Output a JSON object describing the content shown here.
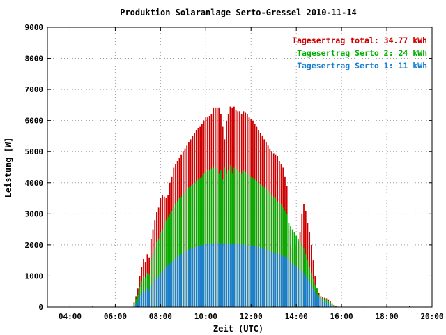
{
  "chart_data": {
    "type": "bar",
    "title": "Produktion Solaranlage Serto-Gressel 2010-11-14",
    "xlabel": "Zeit (UTC)",
    "ylabel": "Leistung [W]",
    "xlim": [
      "03:00",
      "20:00"
    ],
    "ylim": [
      0,
      9000
    ],
    "grid": true,
    "legend_position": "top-right",
    "x_ticks": [
      "04:00",
      "06:00",
      "08:00",
      "10:00",
      "12:00",
      "14:00",
      "16:00",
      "18:00",
      "20:00"
    ],
    "y_ticks": [
      "0",
      "1000",
      "2000",
      "3000",
      "4000",
      "5000",
      "6000",
      "7000",
      "8000",
      "9000"
    ],
    "legend": [
      {
        "label": "Tagesertrag total: 34.77 kWh",
        "color": "#cc0000"
      },
      {
        "label": "Tagesertrag Serto 2: 24 kWh",
        "color": "#00b000"
      },
      {
        "label": "Tagesertrag Serto 1: 11 kWh",
        "color": "#1a7fd4"
      }
    ],
    "x": [
      "06:50",
      "06:55",
      "07:00",
      "07:05",
      "07:10",
      "07:15",
      "07:20",
      "07:25",
      "07:30",
      "07:35",
      "07:40",
      "07:45",
      "07:50",
      "07:55",
      "08:00",
      "08:05",
      "08:10",
      "08:15",
      "08:20",
      "08:25",
      "08:30",
      "08:35",
      "08:40",
      "08:45",
      "08:50",
      "08:55",
      "09:00",
      "09:05",
      "09:10",
      "09:15",
      "09:20",
      "09:25",
      "09:30",
      "09:35",
      "09:40",
      "09:45",
      "09:50",
      "09:55",
      "10:00",
      "10:05",
      "10:10",
      "10:15",
      "10:20",
      "10:25",
      "10:30",
      "10:35",
      "10:40",
      "10:45",
      "10:50",
      "10:55",
      "11:00",
      "11:05",
      "11:10",
      "11:15",
      "11:20",
      "11:25",
      "11:30",
      "11:35",
      "11:40",
      "11:45",
      "11:50",
      "11:55",
      "12:00",
      "12:05",
      "12:10",
      "12:15",
      "12:20",
      "12:25",
      "12:30",
      "12:35",
      "12:40",
      "12:45",
      "12:50",
      "12:55",
      "13:00",
      "13:05",
      "13:10",
      "13:15",
      "13:20",
      "13:25",
      "13:30",
      "13:35",
      "13:40",
      "13:45",
      "13:50",
      "13:55",
      "14:00",
      "14:05",
      "14:10",
      "14:15",
      "14:20",
      "14:25",
      "14:30",
      "14:35",
      "14:40",
      "14:45",
      "14:50",
      "14:55",
      "15:00",
      "15:05",
      "15:10",
      "15:15",
      "15:20",
      "15:25",
      "15:30",
      "15:35",
      "15:40",
      "15:45"
    ],
    "series": [
      {
        "name": "Tagesertrag Serto 1: 11 kWh",
        "color": "#1a7fd4",
        "values": [
          50,
          100,
          200,
          350,
          450,
          550,
          500,
          600,
          550,
          700,
          800,
          900,
          950,
          1000,
          1100,
          1150,
          1200,
          1300,
          1350,
          1400,
          1450,
          1500,
          1550,
          1600,
          1650,
          1700,
          1750,
          1780,
          1800,
          1850,
          1880,
          1900,
          1920,
          1950,
          1960,
          1980,
          2000,
          2000,
          2020,
          2030,
          2040,
          2050,
          2050,
          2060,
          2060,
          2060,
          2050,
          2040,
          2050,
          2050,
          2050,
          2040,
          2040,
          2030,
          2030,
          2020,
          2020,
          2010,
          2000,
          2000,
          1990,
          1980,
          1970,
          1960,
          1950,
          1940,
          1920,
          1900,
          1890,
          1870,
          1850,
          1820,
          1800,
          1780,
          1760,
          1740,
          1720,
          1700,
          1680,
          1650,
          1620,
          1600,
          1500,
          1450,
          1400,
          1350,
          1300,
          1250,
          1200,
          1150,
          1100,
          1000,
          900,
          800,
          700,
          600,
          500,
          400,
          300,
          250,
          200,
          200,
          150,
          100,
          80,
          50,
          30,
          10
        ]
      },
      {
        "name": "Tagesertrag Serto 2: 24 kWh",
        "color": "#00b000",
        "values": [
          100,
          250,
          400,
          650,
          850,
          1000,
          950,
          1100,
          1050,
          1500,
          1700,
          1900,
          2100,
          2200,
          2400,
          2500,
          2700,
          2800,
          2900,
          3000,
          3100,
          3200,
          3300,
          3400,
          3500,
          3550,
          3650,
          3700,
          3800,
          3850,
          3900,
          3950,
          4000,
          4050,
          4100,
          4150,
          4200,
          4300,
          4350,
          4400,
          4400,
          4450,
          4500,
          4500,
          4450,
          4300,
          4400,
          4100,
          4500,
          4300,
          4400,
          4550,
          4300,
          4500,
          4450,
          4400,
          4350,
          4300,
          4400,
          4350,
          4300,
          4250,
          4200,
          4150,
          4100,
          4050,
          4000,
          3950,
          3900,
          3850,
          3800,
          3750,
          3700,
          3600,
          3550,
          3500,
          3400,
          3350,
          3300,
          3200,
          3100,
          3000,
          2700,
          2600,
          2500,
          2400,
          2300,
          2200,
          2100,
          2000,
          1900,
          1700,
          1500,
          1300,
          1100,
          900,
          700,
          600,
          400,
          300,
          280,
          260,
          240,
          200,
          150,
          100,
          60,
          20
        ]
      },
      {
        "name": "Tagesertrag total: 34.77 kWh",
        "color": "#cc0000",
        "values": [
          150,
          350,
          600,
          1000,
          1300,
          1550,
          1450,
          1700,
          1600,
          2200,
          2500,
          2800,
          3050,
          3200,
          3500,
          3600,
          3550,
          3500,
          3600,
          4000,
          4200,
          4500,
          4600,
          4700,
          4800,
          4900,
          5000,
          5100,
          5200,
          5300,
          5400,
          5500,
          5600,
          5700,
          5750,
          5800,
          5900,
          6000,
          6100,
          6100,
          6150,
          6200,
          6400,
          6400,
          6400,
          6400,
          6200,
          5800,
          5400,
          6000,
          6200,
          6450,
          6400,
          6450,
          6350,
          6300,
          6300,
          6200,
          6300,
          6250,
          6200,
          6100,
          6050,
          6000,
          5900,
          5800,
          5700,
          5600,
          5500,
          5400,
          5300,
          5200,
          5100,
          5000,
          4950,
          4900,
          4850,
          4700,
          4600,
          4500,
          4200,
          3900,
          2500,
          2000,
          1900,
          1850,
          1950,
          2100,
          2400,
          3000,
          3300,
          3100,
          2700,
          2400,
          2000,
          1500,
          1000,
          600,
          450,
          350,
          320,
          300,
          280,
          230,
          180,
          120,
          70,
          30
        ]
      }
    ]
  }
}
